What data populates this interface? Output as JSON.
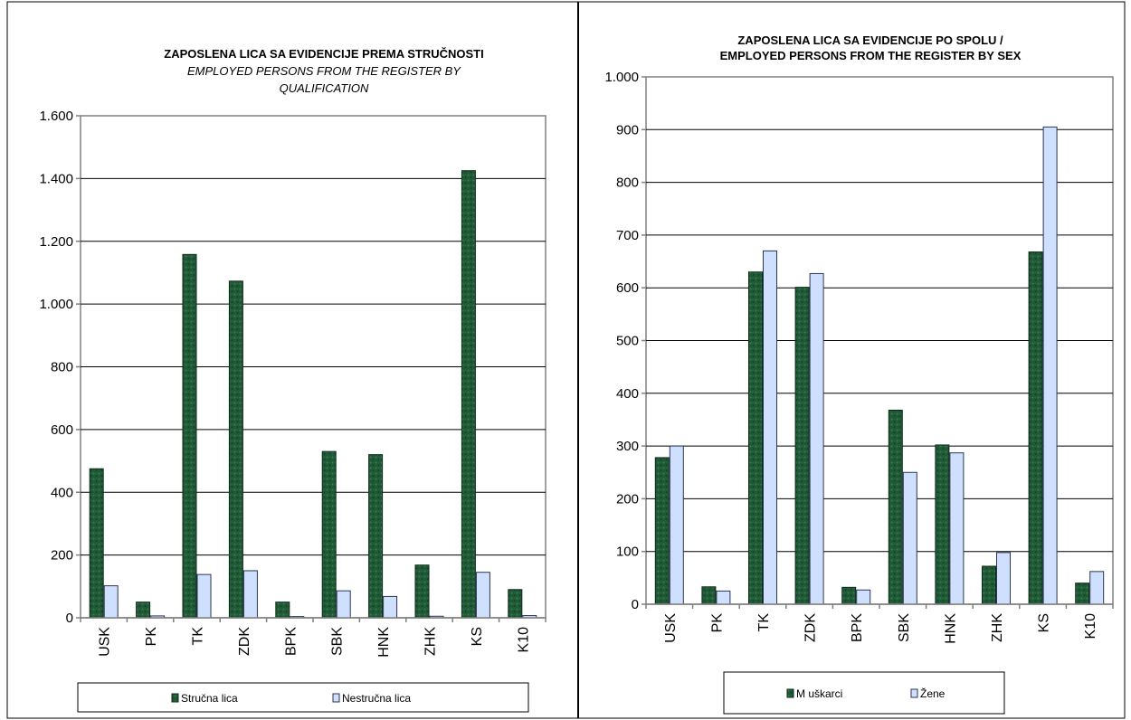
{
  "colors": {
    "series_a": "#1f5a36",
    "series_a_stroke": "#0f2a1a",
    "series_b": "#cfe0ff",
    "series_b_stroke": "#2a3550",
    "grid": "#000000",
    "axis": "#808080"
  },
  "chart_data": [
    {
      "type": "bar",
      "title_line1": "ZAPOSLENA LICA SA EVIDENCIJE PREMA STRUČNOSTI",
      "title_line2": "EMPLOYED PERSONS FROM THE REGISTER BY",
      "title_line3": "QUALIFICATION",
      "categories": [
        "USK",
        "PK",
        "TK",
        "ZDK",
        "BPK",
        "SBK",
        "HNK",
        "ZHK",
        "KS",
        "K10"
      ],
      "series": [
        {
          "name": "Stručna lica",
          "values": [
            475,
            50,
            1158,
            1073,
            50,
            530,
            520,
            168,
            1425,
            90
          ]
        },
        {
          "name": "Nestručna lica",
          "values": [
            102,
            6,
            138,
            150,
            4,
            86,
            68,
            5,
            145,
            7
          ]
        }
      ],
      "ylim": [
        0,
        1600
      ],
      "yticks": [
        0,
        200,
        400,
        600,
        800,
        1000,
        1200,
        1400,
        1600
      ],
      "ytick_labels": [
        "0",
        "200",
        "400",
        "600",
        "800",
        "1.000",
        "1.200",
        "1.400",
        "1.600"
      ],
      "grid": true,
      "legend": "bottom"
    },
    {
      "type": "bar",
      "title_line1": "ZAPOSLENA LICA SA EVIDENCIJE PO SPOLU /",
      "title_line2": "EMPLOYED PERSONS FROM THE REGISTER BY SEX",
      "categories": [
        "USK",
        "PK",
        "TK",
        "ZDK",
        "BPK",
        "SBK",
        "HNK",
        "ZHK",
        "KS",
        "K10"
      ],
      "series": [
        {
          "name": "M uškarci",
          "values": [
            278,
            33,
            630,
            601,
            32,
            368,
            302,
            72,
            668,
            40
          ]
        },
        {
          "name": "Žene",
          "values": [
            300,
            25,
            670,
            627,
            27,
            250,
            287,
            98,
            905,
            62
          ]
        }
      ],
      "ylim": [
        0,
        1000
      ],
      "yticks": [
        0,
        100,
        200,
        300,
        400,
        500,
        600,
        700,
        800,
        900,
        1000
      ],
      "ytick_labels": [
        "0",
        "100",
        "200",
        "300",
        "400",
        "500",
        "600",
        "700",
        "800",
        "900",
        "1.000"
      ],
      "grid": true,
      "legend": "bottom"
    }
  ]
}
